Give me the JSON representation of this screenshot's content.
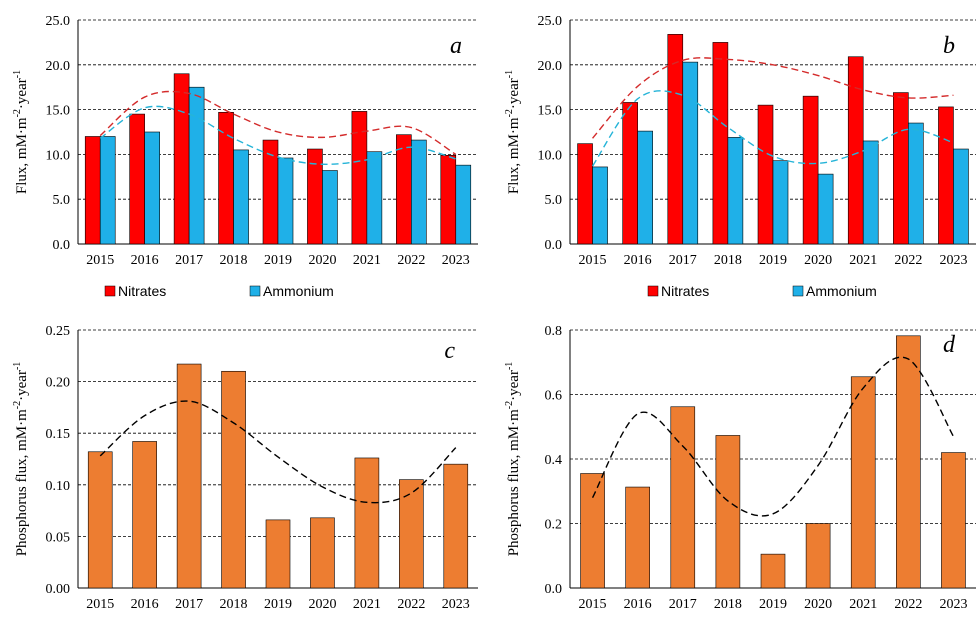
{
  "chart_data": [
    {
      "panel": "a",
      "type": "bar",
      "title": "",
      "xlabel": "",
      "ylabel": "Flux, mM·m",
      "ylabel_sup1": "-2",
      "ylabel_mid": "·year",
      "ylabel_sup2": "-1",
      "ylim": [
        0,
        25
      ],
      "yticks": [
        "0.0",
        "5.0",
        "10.0",
        "15.0",
        "20.0",
        "25.0"
      ],
      "categories": [
        "2015",
        "2016",
        "2017",
        "2018",
        "2019",
        "2020",
        "2021",
        "2022",
        "2023"
      ],
      "series": [
        {
          "name": "Nitrates",
          "color": "#ff0000",
          "values": [
            12.0,
            14.5,
            19.0,
            14.7,
            11.6,
            10.6,
            14.8,
            12.2,
            9.9
          ]
        },
        {
          "name": "Ammonium",
          "color": "#1fb0e8",
          "values": [
            12.0,
            12.5,
            17.5,
            10.5,
            9.6,
            8.2,
            10.3,
            11.6,
            8.8
          ]
        }
      ],
      "trendlines": [
        {
          "series": "Nitrates",
          "color": "#d42b2b",
          "style": "dashed",
          "values": [
            12.1,
            16.4,
            16.8,
            14.5,
            12.5,
            11.9,
            12.6,
            13.0,
            10.0
          ]
        },
        {
          "series": "Ammonium",
          "color": "#25b4d8",
          "style": "dashed",
          "values": [
            11.8,
            15.2,
            14.5,
            11.8,
            9.7,
            8.9,
            9.4,
            10.8,
            9.5
          ]
        }
      ],
      "legend": {
        "position": "bottom",
        "entries": [
          "Nitrates",
          "Ammonium"
        ]
      },
      "grid": "horizontal-dashed"
    },
    {
      "panel": "b",
      "type": "bar",
      "title": "",
      "xlabel": "",
      "ylabel": "Flux, mM·m",
      "ylabel_sup1": "-2",
      "ylabel_mid": "·year",
      "ylabel_sup2": "-1",
      "ylim": [
        0,
        25
      ],
      "yticks": [
        "0.0",
        "5.0",
        "10.0",
        "15.0",
        "20.0",
        "25.0"
      ],
      "categories": [
        "2015",
        "2016",
        "2017",
        "2018",
        "2019",
        "2020",
        "2021",
        "2022",
        "2023"
      ],
      "series": [
        {
          "name": "Nitrates",
          "color": "#ff0000",
          "values": [
            11.2,
            15.8,
            23.4,
            22.5,
            15.5,
            16.5,
            20.9,
            16.9,
            15.3
          ]
        },
        {
          "name": "Ammonium",
          "color": "#1fb0e8",
          "values": [
            8.6,
            12.6,
            20.3,
            11.9,
            9.3,
            7.8,
            11.5,
            13.5,
            10.6
          ]
        }
      ],
      "trendlines": [
        {
          "series": "Nitrates",
          "color": "#d42b2b",
          "style": "dashed",
          "values": [
            11.8,
            17.6,
            20.5,
            20.6,
            20.0,
            18.8,
            17.2,
            16.3,
            16.6
          ]
        },
        {
          "series": "Ammonium",
          "color": "#25b4d8",
          "style": "dashed",
          "values": [
            8.7,
            16.2,
            16.6,
            13.0,
            9.8,
            9.0,
            10.4,
            12.8,
            11.3
          ]
        }
      ],
      "legend": {
        "position": "bottom",
        "entries": [
          "Nitrates",
          "Ammonium"
        ]
      },
      "grid": "horizontal-dashed"
    },
    {
      "panel": "c",
      "type": "bar",
      "title": "",
      "xlabel": "",
      "ylabel": "Phosphorus flux, mM·m",
      "ylabel_sup1": "-2",
      "ylabel_mid": "·year",
      "ylabel_sup2": "-1",
      "ylim": [
        0,
        0.25
      ],
      "yticks": [
        "0.00",
        "0.05",
        "0.10",
        "0.15",
        "0.20",
        "0.25"
      ],
      "categories": [
        "2015",
        "2016",
        "2017",
        "2018",
        "2019",
        "2020",
        "2021",
        "2022",
        "2023"
      ],
      "series": [
        {
          "name": "",
          "color": "#ed7d31",
          "values": [
            0.132,
            0.142,
            0.217,
            0.21,
            0.066,
            0.068,
            0.126,
            0.105,
            0.12
          ]
        }
      ],
      "trendlines": [
        {
          "series": "",
          "color": "#000000",
          "style": "dashed",
          "values": [
            0.128,
            0.167,
            0.181,
            0.16,
            0.127,
            0.098,
            0.083,
            0.092,
            0.136
          ]
        }
      ],
      "legend": null,
      "grid": "horizontal-dashed"
    },
    {
      "panel": "d",
      "type": "bar",
      "title": "",
      "xlabel": "",
      "ylabel": "Phosphorus flux, mM·m",
      "ylabel_sup1": "-2",
      "ylabel_mid": "·year",
      "ylabel_sup2": "-1",
      "ylim": [
        0,
        0.8
      ],
      "yticks": [
        "0.0",
        "0.2",
        "0.4",
        "0.6",
        "0.8"
      ],
      "categories": [
        "2015",
        "2016",
        "2017",
        "2018",
        "2019",
        "2020",
        "2021",
        "2022",
        "2023"
      ],
      "series": [
        {
          "name": "",
          "color": "#ed7d31",
          "values": [
            0.355,
            0.313,
            0.562,
            0.473,
            0.105,
            0.2,
            0.655,
            0.782,
            0.42
          ]
        }
      ],
      "trendlines": [
        {
          "series": "",
          "color": "#000000",
          "style": "dashed",
          "values": [
            0.28,
            0.54,
            0.44,
            0.27,
            0.23,
            0.38,
            0.62,
            0.71,
            0.47
          ]
        }
      ],
      "legend": null,
      "grid": "horizontal-dashed"
    }
  ]
}
